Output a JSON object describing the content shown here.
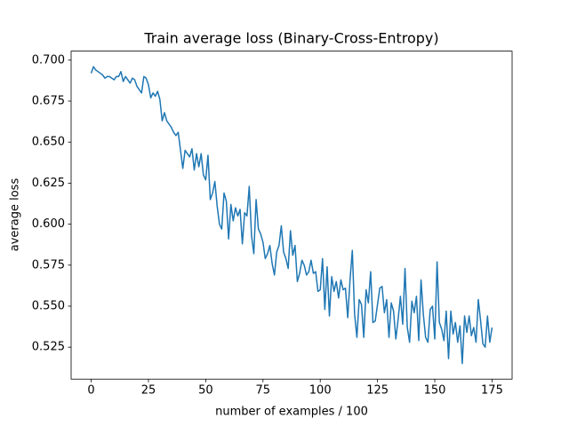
{
  "chart_data": {
    "type": "line",
    "title": "Train average loss  (Binary-Cross-Entropy)",
    "x_label": "number of examples / 100",
    "y_label": "average loss",
    "x": [
      0,
      1,
      2,
      3,
      4,
      5,
      6,
      7,
      8,
      9,
      10,
      11,
      12,
      13,
      14,
      15,
      16,
      17,
      18,
      19,
      20,
      21,
      22,
      23,
      24,
      25,
      26,
      27,
      28,
      29,
      30,
      31,
      32,
      33,
      34,
      35,
      36,
      37,
      38,
      39,
      40,
      41,
      42,
      43,
      44,
      45,
      46,
      47,
      48,
      49,
      50,
      51,
      52,
      53,
      54,
      55,
      56,
      57,
      58,
      59,
      60,
      61,
      62,
      63,
      64,
      65,
      66,
      67,
      68,
      69,
      70,
      71,
      72,
      73,
      74,
      75,
      76,
      77,
      78,
      79,
      80,
      81,
      82,
      83,
      84,
      85,
      86,
      87,
      88,
      89,
      90,
      91,
      92,
      93,
      94,
      95,
      96,
      97,
      98,
      99,
      100,
      101,
      102,
      103,
      104,
      105,
      106,
      107,
      108,
      109,
      110,
      111,
      112,
      113,
      114,
      115,
      116,
      117,
      118,
      119,
      120,
      121,
      122,
      123,
      124,
      125,
      126,
      127,
      128,
      129,
      130,
      131,
      132,
      133,
      134,
      135,
      136,
      137,
      138,
      139,
      140,
      141,
      142,
      143,
      144,
      145,
      146,
      147,
      148,
      149,
      150,
      151,
      152,
      153,
      154,
      155,
      156,
      157,
      158,
      159,
      160,
      161,
      162,
      163,
      164,
      165,
      166,
      167,
      168,
      169,
      170,
      171,
      172,
      173,
      174,
      175
    ],
    "series": [
      {
        "name": "average loss",
        "color": "#1f77b4",
        "values": [
          0.692,
          0.696,
          0.694,
          0.693,
          0.692,
          0.691,
          0.689,
          0.69,
          0.69,
          0.689,
          0.688,
          0.69,
          0.69,
          0.693,
          0.687,
          0.69,
          0.688,
          0.686,
          0.689,
          0.688,
          0.684,
          0.682,
          0.68,
          0.69,
          0.689,
          0.685,
          0.677,
          0.68,
          0.678,
          0.681,
          0.676,
          0.663,
          0.668,
          0.663,
          0.661,
          0.659,
          0.656,
          0.654,
          0.656,
          0.645,
          0.634,
          0.645,
          0.643,
          0.641,
          0.646,
          0.633,
          0.643,
          0.635,
          0.643,
          0.63,
          0.627,
          0.642,
          0.615,
          0.619,
          0.626,
          0.611,
          0.6,
          0.597,
          0.619,
          0.614,
          0.591,
          0.612,
          0.602,
          0.61,
          0.605,
          0.609,
          0.588,
          0.607,
          0.605,
          0.623,
          0.593,
          0.582,
          0.615,
          0.597,
          0.594,
          0.589,
          0.579,
          0.582,
          0.587,
          0.576,
          0.569,
          0.583,
          0.587,
          0.599,
          0.583,
          0.579,
          0.573,
          0.596,
          0.581,
          0.587,
          0.565,
          0.57,
          0.578,
          0.575,
          0.569,
          0.571,
          0.578,
          0.57,
          0.571,
          0.559,
          0.56,
          0.579,
          0.548,
          0.574,
          0.544,
          0.568,
          0.559,
          0.565,
          0.555,
          0.566,
          0.56,
          0.561,
          0.543,
          0.566,
          0.584,
          0.545,
          0.531,
          0.554,
          0.551,
          0.531,
          0.56,
          0.552,
          0.571,
          0.54,
          0.541,
          0.551,
          0.561,
          0.562,
          0.546,
          0.554,
          0.531,
          0.552,
          0.547,
          0.53,
          0.542,
          0.556,
          0.539,
          0.573,
          0.537,
          0.528,
          0.553,
          0.546,
          0.556,
          0.529,
          0.566,
          0.545,
          0.531,
          0.528,
          0.548,
          0.55,
          0.53,
          0.577,
          0.54,
          0.536,
          0.529,
          0.547,
          0.518,
          0.547,
          0.533,
          0.54,
          0.528,
          0.538,
          0.515,
          0.544,
          0.534,
          0.544,
          0.532,
          0.537,
          0.528,
          0.554,
          0.541,
          0.527,
          0.525,
          0.544,
          0.528,
          0.537
        ]
      }
    ],
    "xlim": [
      -8.75,
      183.75
    ],
    "xticks": [
      0,
      25,
      50,
      75,
      100,
      125,
      150,
      175
    ],
    "ylim": [
      0.5055,
      0.7055
    ],
    "yticks": [
      0.525,
      {
        "value": 0.55,
        "label": "0.550"
      },
      0.575,
      {
        "value": 0.6,
        "label": "0.600"
      },
      0.625,
      {
        "value": 0.65,
        "label": "0.650"
      },
      0.675,
      {
        "value": 0.7,
        "label": "0.700"
      }
    ],
    "grid": false
  }
}
